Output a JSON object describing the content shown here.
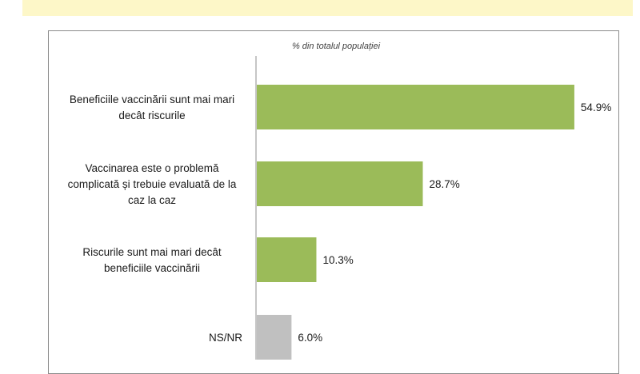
{
  "chart_data": {
    "type": "bar",
    "orientation": "horizontal",
    "title": "% din totalul populației",
    "categories": [
      [
        "Beneficiile vaccinării sunt mai mari",
        "decât riscurile"
      ],
      [
        "Vaccinarea este o problemă",
        "complicată și trebuie evaluată de la",
        "caz la caz"
      ],
      [
        "Riscurile sunt mai mari decât",
        "beneficiile vaccinării"
      ],
      [
        "NS/NR"
      ]
    ],
    "values": [
      54.9,
      28.7,
      10.3,
      6.0
    ],
    "value_labels": [
      "54.9%",
      "28.7%",
      "10.3%",
      "6.0%"
    ],
    "bar_colors": [
      "#9bbb59",
      "#9bbb59",
      "#9bbb59",
      "#c0c0c0"
    ],
    "xlim": [
      0,
      60
    ],
    "unit": "%"
  }
}
